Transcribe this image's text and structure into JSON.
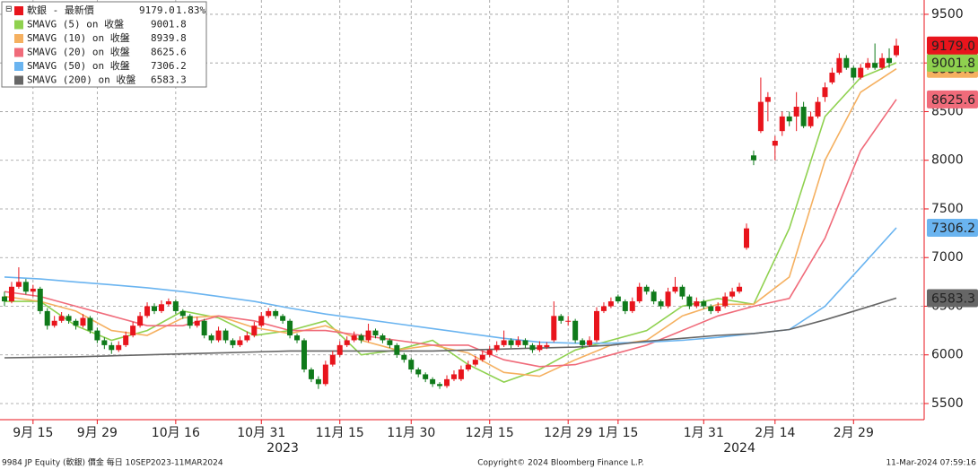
{
  "chart_data": {
    "type": "candlestick",
    "title": "軟銀 - 最新價",
    "last_label": "9179.0",
    "change_label": "1.83%",
    "up_color": "#e8141c",
    "down_color": "#0f7a1a",
    "ohlc": [
      [
        6600,
        6650,
        6500,
        6550
      ],
      [
        6550,
        6750,
        6530,
        6700
      ],
      [
        6700,
        6900,
        6680,
        6750
      ],
      [
        6750,
        6780,
        6620,
        6650
      ],
      [
        6650,
        6720,
        6600,
        6680
      ],
      [
        6680,
        6700,
        6420,
        6450
      ],
      [
        6450,
        6480,
        6260,
        6300
      ],
      [
        6300,
        6400,
        6280,
        6350
      ],
      [
        6350,
        6440,
        6330,
        6400
      ],
      [
        6400,
        6420,
        6320,
        6350
      ],
      [
        6350,
        6370,
        6260,
        6300
      ],
      [
        6300,
        6420,
        6280,
        6380
      ],
      [
        6380,
        6400,
        6220,
        6250
      ],
      [
        6250,
        6280,
        6120,
        6150
      ],
      [
        6150,
        6180,
        6060,
        6100
      ],
      [
        6100,
        6130,
        6010,
        6050
      ],
      [
        6050,
        6140,
        6030,
        6100
      ],
      [
        6100,
        6240,
        6080,
        6200
      ],
      [
        6200,
        6340,
        6180,
        6300
      ],
      [
        6300,
        6440,
        6280,
        6400
      ],
      [
        6400,
        6540,
        6380,
        6500
      ],
      [
        6500,
        6530,
        6420,
        6450
      ],
      [
        6450,
        6560,
        6430,
        6520
      ],
      [
        6520,
        6580,
        6500,
        6550
      ],
      [
        6550,
        6570,
        6420,
        6450
      ],
      [
        6450,
        6470,
        6370,
        6400
      ],
      [
        6400,
        6420,
        6270,
        6300
      ],
      [
        6300,
        6390,
        6280,
        6350
      ],
      [
        6350,
        6370,
        6170,
        6200
      ],
      [
        6200,
        6220,
        6120,
        6150
      ],
      [
        6150,
        6290,
        6130,
        6250
      ],
      [
        6250,
        6270,
        6120,
        6150
      ],
      [
        6150,
        6170,
        6070,
        6100
      ],
      [
        6100,
        6190,
        6080,
        6150
      ],
      [
        6150,
        6240,
        6130,
        6200
      ],
      [
        6200,
        6340,
        6180,
        6300
      ],
      [
        6300,
        6440,
        6280,
        6400
      ],
      [
        6400,
        6480,
        6380,
        6450
      ],
      [
        6450,
        6470,
        6370,
        6400
      ],
      [
        6400,
        6420,
        6320,
        6350
      ],
      [
        6350,
        6370,
        6170,
        6200
      ],
      [
        6200,
        6220,
        6120,
        6150
      ],
      [
        6150,
        6170,
        5820,
        5850
      ],
      [
        5850,
        5870,
        5720,
        5750
      ],
      [
        5750,
        5780,
        5650,
        5700
      ],
      [
        5700,
        5940,
        5680,
        5900
      ],
      [
        5900,
        6040,
        5880,
        6000
      ],
      [
        6000,
        6140,
        5980,
        6100
      ],
      [
        6100,
        6190,
        6080,
        6150
      ],
      [
        6150,
        6240,
        6130,
        6200
      ],
      [
        6200,
        6220,
        6120,
        6150
      ],
      [
        6150,
        6320,
        6130,
        6250
      ],
      [
        6250,
        6270,
        6170,
        6200
      ],
      [
        6200,
        6220,
        6120,
        6150
      ],
      [
        6150,
        6170,
        6070,
        6100
      ],
      [
        6100,
        6120,
        5970,
        6000
      ],
      [
        6000,
        6020,
        5920,
        5950
      ],
      [
        5950,
        5970,
        5820,
        5850
      ],
      [
        5850,
        5870,
        5770,
        5800
      ],
      [
        5800,
        5820,
        5720,
        5750
      ],
      [
        5750,
        5770,
        5670,
        5700
      ],
      [
        5700,
        5720,
        5650,
        5680
      ],
      [
        5680,
        5790,
        5660,
        5750
      ],
      [
        5750,
        5840,
        5730,
        5800
      ],
      [
        5750,
        5890,
        5730,
        5850
      ],
      [
        5850,
        5940,
        5830,
        5900
      ],
      [
        5900,
        5990,
        5880,
        5950
      ],
      [
        5950,
        6040,
        5930,
        6000
      ],
      [
        6000,
        6090,
        5980,
        6050
      ],
      [
        6050,
        6140,
        6030,
        6100
      ],
      [
        6100,
        6250,
        6080,
        6150
      ],
      [
        6150,
        6170,
        6070,
        6100
      ],
      [
        6100,
        6190,
        6080,
        6150
      ],
      [
        6150,
        6170,
        6070,
        6100
      ],
      [
        6100,
        6120,
        6020,
        6050
      ],
      [
        6050,
        6140,
        6030,
        6100
      ],
      [
        6080,
        6130,
        6060,
        6100
      ],
      [
        6150,
        6550,
        6130,
        6400
      ],
      [
        6400,
        6420,
        6320,
        6350
      ],
      [
        6350,
        6400,
        6300,
        6350
      ],
      [
        6350,
        6370,
        6120,
        6150
      ],
      [
        6150,
        6170,
        6070,
        6100
      ],
      [
        6100,
        6190,
        6080,
        6150
      ],
      [
        6150,
        6490,
        6130,
        6450
      ],
      [
        6450,
        6540,
        6430,
        6500
      ],
      [
        6500,
        6590,
        6480,
        6550
      ],
      [
        6600,
        6620,
        6530,
        6550
      ],
      [
        6550,
        6570,
        6420,
        6450
      ],
      [
        6450,
        6590,
        6430,
        6550
      ],
      [
        6550,
        6740,
        6530,
        6700
      ],
      [
        6700,
        6720,
        6620,
        6650
      ],
      [
        6650,
        6670,
        6520,
        6550
      ],
      [
        6550,
        6570,
        6470,
        6500
      ],
      [
        6500,
        6690,
        6480,
        6650
      ],
      [
        6650,
        6800,
        6630,
        6700
      ],
      [
        6700,
        6720,
        6570,
        6600
      ],
      [
        6600,
        6620,
        6470,
        6500
      ],
      [
        6500,
        6590,
        6480,
        6550
      ],
      [
        6550,
        6570,
        6470,
        6500
      ],
      [
        6500,
        6520,
        6420,
        6450
      ],
      [
        6450,
        6540,
        6430,
        6500
      ],
      [
        6500,
        6640,
        6480,
        6600
      ],
      [
        6600,
        6690,
        6580,
        6650
      ],
      [
        6650,
        6740,
        6630,
        6700
      ],
      [
        7100,
        7350,
        7080,
        7300
      ],
      [
        8050,
        8100,
        7950,
        8000
      ],
      [
        8300,
        8850,
        8280,
        8600
      ],
      [
        8600,
        8700,
        8400,
        8650
      ],
      [
        8150,
        8250,
        8000,
        8200
      ],
      [
        8300,
        8500,
        8250,
        8450
      ],
      [
        8450,
        8500,
        8350,
        8400
      ],
      [
        8450,
        8700,
        8300,
        8550
      ],
      [
        8550,
        8600,
        8330,
        8350
      ],
      [
        8350,
        8500,
        8330,
        8450
      ],
      [
        8450,
        8650,
        8430,
        8600
      ],
      [
        8650,
        8800,
        8600,
        8750
      ],
      [
        8800,
        8950,
        8780,
        8900
      ],
      [
        8900,
        9100,
        8880,
        9050
      ],
      [
        9050,
        9080,
        8930,
        8950
      ],
      [
        8950,
        8970,
        8820,
        8850
      ],
      [
        8850,
        8990,
        8830,
        8950
      ],
      [
        8950,
        9050,
        8930,
        9000
      ],
      [
        9000,
        9200,
        8930,
        8950
      ],
      [
        8950,
        9100,
        8930,
        9050
      ],
      [
        9050,
        9150,
        8950,
        9000
      ],
      [
        9080,
        9250,
        9060,
        9179
      ]
    ],
    "line_x": [
      0,
      5,
      10,
      15,
      20,
      25,
      30,
      35,
      40,
      45,
      50,
      55,
      60,
      65,
      70,
      75,
      80,
      85,
      90,
      95,
      100,
      105,
      110,
      115,
      120,
      125
    ],
    "lines": [
      {
        "name": "SMAVG (5)  on 收盤",
        "color": "#8fd14f",
        "label_text": "#111",
        "values": [
          6550,
          6550,
          6300,
          6150,
          6250,
          6450,
          6380,
          6200,
          6250,
          6350,
          6000,
          6050,
          6150,
          5900,
          5720,
          5850,
          6050,
          6150,
          6250,
          6500,
          6580,
          6520,
          7300,
          8450,
          8850,
          9001.8
        ]
      },
      {
        "name": "SMAVG (10)  on 收盤",
        "color": "#f5b060",
        "label_text": "#111",
        "values": [
          6600,
          6550,
          6450,
          6250,
          6200,
          6380,
          6400,
          6280,
          6220,
          6300,
          6150,
          6050,
          6100,
          6020,
          5820,
          5780,
          5950,
          6100,
          6150,
          6400,
          6520,
          6520,
          6800,
          8000,
          8700,
          8939.8
        ]
      },
      {
        "name": "SMAVG (20)  on 收盤",
        "color": "#f06b7a",
        "label_text": "#fff",
        "values": [
          6650,
          6600,
          6500,
          6400,
          6300,
          6300,
          6400,
          6350,
          6250,
          6250,
          6200,
          6150,
          6100,
          6100,
          5950,
          5880,
          5900,
          6000,
          6100,
          6250,
          6400,
          6500,
          6580,
          7200,
          8100,
          8625.6
        ]
      },
      {
        "name": "SMAVG (50)  on 收盤",
        "color": "#6ab4f0",
        "label_text": "#111",
        "values": [
          6800,
          6780,
          6750,
          6720,
          6690,
          6650,
          6600,
          6550,
          6480,
          6420,
          6370,
          6320,
          6270,
          6220,
          6170,
          6130,
          6120,
          6120,
          6130,
          6150,
          6180,
          6220,
          6260,
          6500,
          6900,
          7306.2
        ]
      },
      {
        "name": "SMAVG (200)  on 收盤",
        "color": "#666666",
        "label_text": "#fff",
        "values": [
          5970,
          5975,
          5980,
          5990,
          6000,
          6010,
          6020,
          6030,
          6040,
          6040,
          6040,
          6040,
          6040,
          6050,
          6060,
          6070,
          6080,
          6100,
          6140,
          6170,
          6200,
          6220,
          6260,
          6360,
          6470,
          6583.3
        ]
      }
    ],
    "xlim": [
      -0.63,
      128.9
    ],
    "xticks": [
      {
        "value": 4,
        "label": "9月 15"
      },
      {
        "value": 13,
        "label": "9月 29"
      },
      {
        "value": 24,
        "label": "10月 16"
      },
      {
        "value": 36,
        "label": "10月 31"
      },
      {
        "value": 47,
        "label": "11月 15"
      },
      {
        "value": 57,
        "label": "11月 30"
      },
      {
        "value": 68,
        "label": "12月 15"
      },
      {
        "value": 79,
        "label": "12月 29"
      },
      {
        "value": 86,
        "label": "1月 15"
      },
      {
        "value": 98,
        "label": "1月 31"
      },
      {
        "value": 108,
        "label": "2月 14"
      },
      {
        "value": 119,
        "label": "2月 29"
      }
    ],
    "year_labels": [
      {
        "value": 39,
        "label": "2023"
      },
      {
        "value": 103,
        "label": "2024"
      }
    ],
    "ylim": [
      5334,
      9647
    ],
    "yticks": [
      5500,
      6000,
      6500,
      7000,
      7500,
      8000,
      8500,
      9000,
      9500
    ],
    "grid": true,
    "footer_left": "9984 JP Equity (軟銀) 價金  每日 10SEP2023-11MAR2024",
    "footer_center": "Copyright© 2024 Bloomberg Finance L.P.",
    "footer_right": "11-Mar-2024 07:59:16"
  }
}
